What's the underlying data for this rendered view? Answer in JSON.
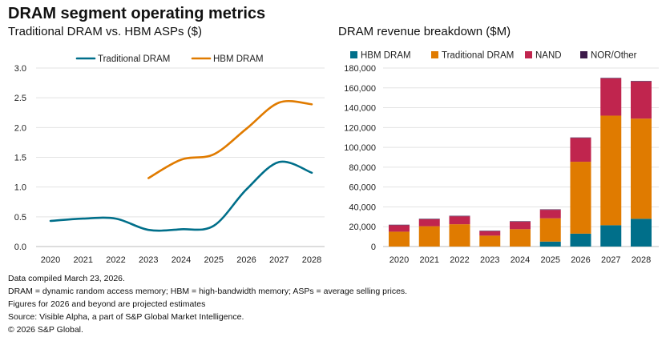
{
  "title": "DRAM segment operating metrics",
  "notes": [
    "Data compiled March 23, 2026.",
    "DRAM = dynamic random access memory; HBM = high-bandwidth memory; ASPs = average selling prices.",
    "Figures for 2026 and beyond are projected estimates",
    "Source: Visible Alpha, a part of S&P Global Market Intelligence.",
    "© 2026 S&P Global."
  ],
  "chart_data": [
    {
      "type": "line",
      "title": "Traditional DRAM vs. HBM ASPs ($)",
      "x": [
        "2020",
        "2021",
        "2022",
        "2023",
        "2024",
        "2025",
        "2026",
        "2027",
        "2028"
      ],
      "ylim": [
        0,
        3.0
      ],
      "yticks": [
        "0.0",
        "0.5",
        "1.0",
        "1.5",
        "2.0",
        "2.5",
        "3.0"
      ],
      "grid": true,
      "legend_position": "top-center",
      "series": [
        {
          "name": "Traditional DRAM",
          "color": "#006f8a",
          "values": [
            0.43,
            0.47,
            0.47,
            0.28,
            0.29,
            0.35,
            0.96,
            1.42,
            1.24
          ]
        },
        {
          "name": "HBM DRAM",
          "color": "#e07b00",
          "values": [
            null,
            null,
            null,
            1.15,
            1.46,
            1.55,
            1.98,
            2.42,
            2.39
          ]
        }
      ]
    },
    {
      "type": "bar",
      "stacked": true,
      "title": "DRAM revenue breakdown ($M)",
      "categories": [
        "2020",
        "2021",
        "2022",
        "2023",
        "2024",
        "2025",
        "2026",
        "2027",
        "2028"
      ],
      "ylim": [
        0,
        180000
      ],
      "yticks": [
        "0",
        "20,000",
        "40,000",
        "60,000",
        "80,000",
        "100,000",
        "120,000",
        "140,000",
        "160,000",
        "180,000"
      ],
      "grid": true,
      "legend_position": "top",
      "series": [
        {
          "name": "HBM DRAM",
          "color": "#006f8a",
          "values": [
            0,
            0,
            0,
            0,
            0,
            5000,
            13000,
            21500,
            28000
          ]
        },
        {
          "name": "Traditional DRAM",
          "color": "#e07b00",
          "values": [
            15000,
            20500,
            22500,
            11000,
            17500,
            23500,
            72500,
            110500,
            101000
          ]
        },
        {
          "name": "NAND",
          "color": "#c0254e",
          "values": [
            6500,
            7000,
            8000,
            4500,
            7500,
            8500,
            24000,
            37500,
            37500
          ]
        },
        {
          "name": "NOR/Other",
          "color": "#3d1a4a",
          "values": [
            500,
            500,
            500,
            500,
            500,
            500,
            500,
            500,
            500
          ]
        }
      ]
    }
  ]
}
